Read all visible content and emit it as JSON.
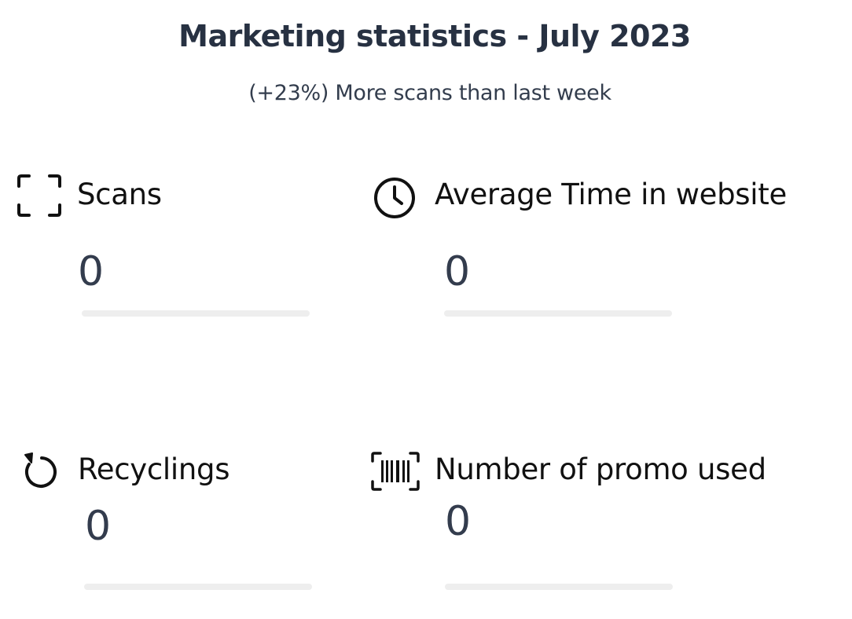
{
  "header": {
    "title": "Marketing statistics - July 2023",
    "subtitle": "(+23%) More scans than last week"
  },
  "stats": [
    {
      "label": "Scans",
      "value": "0",
      "icon": "scan-frame-icon",
      "progress_fraction": 0
    },
    {
      "label": "Average Time in website",
      "value": "0",
      "icon": "clock-icon",
      "progress_fraction": 0
    },
    {
      "label": "Recyclings",
      "value": "0",
      "icon": "rotate-ccw-icon",
      "progress_fraction": 0
    },
    {
      "label": "Number of promo used",
      "value": "0",
      "icon": "barcode-scan-icon",
      "progress_fraction": 0
    }
  ],
  "colors": {
    "title": "#273142",
    "label": "#111111",
    "value": "#333c4d",
    "progress_track": "#eeeeee"
  }
}
